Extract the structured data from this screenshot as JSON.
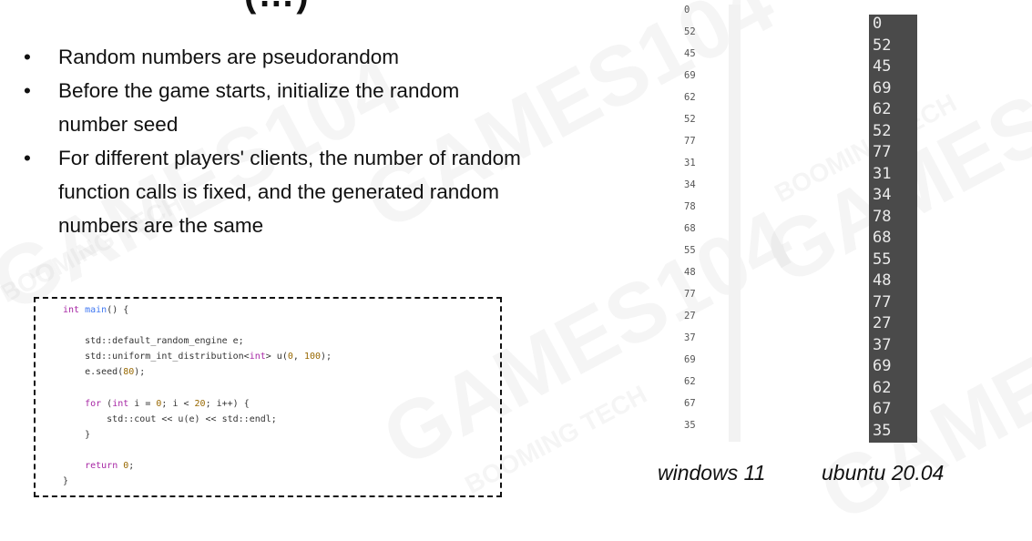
{
  "title_fragment": "(…)",
  "watermark": {
    "big": "GAMES104",
    "small": "BOOMING TECH"
  },
  "bullets": [
    "Random numbers are pseudorandom",
    "Before the game starts, initialize the random number seed",
    "For different players' clients, the number of random function calls is fixed, and the generated random numbers are the same"
  ],
  "code_lines": [
    "int main() {",
    "",
    "    std::default_random_engine e;",
    "    std::uniform_int_distribution<int> u(0, 100);",
    "    e.seed(80);",
    "",
    "    for (int i = 0; i < 20; i++) {",
    "        std::cout << u(e) << std::endl;",
    "    }",
    "",
    "    return 0;",
    "}"
  ],
  "windows_output": [
    "0",
    "52",
    "45",
    "69",
    "62",
    "52",
    "77",
    "31",
    "34",
    "78",
    "68",
    "55",
    "48",
    "77",
    "27",
    "37",
    "69",
    "62",
    "67",
    "35"
  ],
  "ubuntu_output": [
    "0",
    "52",
    "45",
    "69",
    "62",
    "52",
    "77",
    "31",
    "34",
    "78",
    "68",
    "55",
    "48",
    "77",
    "27",
    "37",
    "69",
    "62",
    "67",
    "35"
  ],
  "captions": {
    "windows": "windows 11",
    "ubuntu": "ubuntu 20.04"
  }
}
